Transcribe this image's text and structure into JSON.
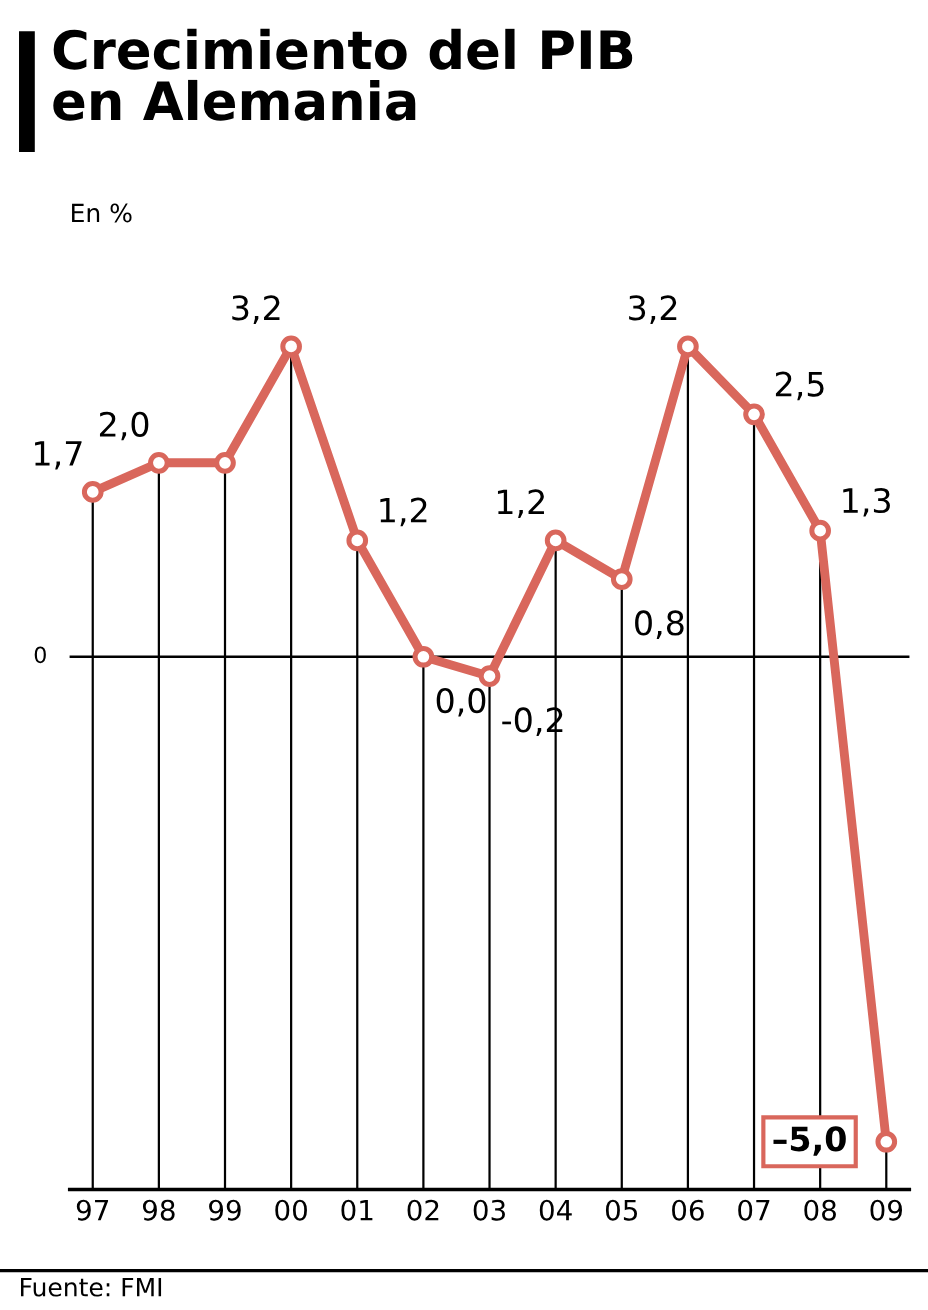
{
  "chart_data": {
    "type": "line",
    "title": "Crecimiento del PIB\nen Alemania",
    "subtitle": "En %",
    "categories": [
      "97",
      "98",
      "99",
      "00",
      "01",
      "02",
      "03",
      "04",
      "05",
      "06",
      "07",
      "08",
      "09"
    ],
    "series": [
      {
        "color": "#d9675c",
        "values": [
          1.7,
          2.0,
          2.0,
          3.2,
          1.2,
          0.0,
          -0.2,
          1.2,
          0.8,
          3.2,
          2.5,
          1.3,
          -5.0
        ],
        "value_labels": [
          "1,7",
          "2,0",
          null,
          "3,2",
          "1,2",
          "0,0",
          "-0,2",
          "1,2",
          "0,8",
          "3,2",
          "2,5",
          "1,3",
          "–5,0"
        ]
      }
    ],
    "grid": "x",
    "ref_lines": [
      {
        "axis": "y",
        "value": 0,
        "label": "0"
      }
    ],
    "marker": "circle",
    "line_style": "solid",
    "legend": false,
    "annotations": [
      "Fuente: FMI"
    ]
  }
}
